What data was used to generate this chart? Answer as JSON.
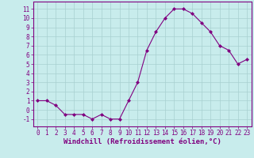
{
  "x": [
    0,
    1,
    2,
    3,
    4,
    5,
    6,
    7,
    8,
    9,
    10,
    11,
    12,
    13,
    14,
    15,
    16,
    17,
    18,
    19,
    20,
    21,
    22,
    23
  ],
  "y": [
    1,
    1,
    0.5,
    -0.5,
    -0.5,
    -0.5,
    -1,
    -0.5,
    -1,
    -1,
    1,
    3,
    6.5,
    8.5,
    10,
    11,
    11,
    10.5,
    9.5,
    8.5,
    7,
    6.5,
    5,
    5.5
  ],
  "line_color": "#800080",
  "marker": "D",
  "marker_size": 2,
  "bg_color": "#c8ecec",
  "grid_color": "#a8d0d0",
  "xlabel": "Windchill (Refroidissement éolien,°C)",
  "xlim": [
    -0.5,
    23.5
  ],
  "ylim": [
    -1.8,
    11.8
  ],
  "yticks": [
    -1,
    0,
    1,
    2,
    3,
    4,
    5,
    6,
    7,
    8,
    9,
    10,
    11
  ],
  "xticks": [
    0,
    1,
    2,
    3,
    4,
    5,
    6,
    7,
    8,
    9,
    10,
    11,
    12,
    13,
    14,
    15,
    16,
    17,
    18,
    19,
    20,
    21,
    22,
    23
  ],
  "tick_fontsize": 5.5,
  "xlabel_fontsize": 6.5,
  "line_width": 0.8
}
